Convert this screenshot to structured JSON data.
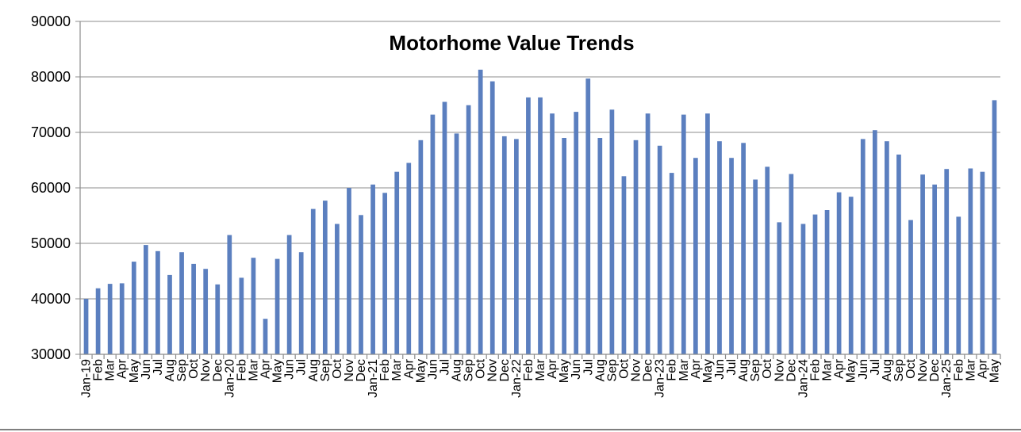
{
  "chart_data": {
    "type": "bar",
    "title": "Motorhome Value Trends",
    "xlabel": "",
    "ylabel": "",
    "ylim": [
      30000,
      90000
    ],
    "yticks": [
      30000,
      40000,
      50000,
      60000,
      70000,
      80000,
      90000
    ],
    "grid": true,
    "legend": "none",
    "bar_color": "#5b7fbf",
    "categories": [
      "Jan-19",
      "Feb",
      "Mar",
      "Apr",
      "May",
      "Jun",
      "Jul",
      "Aug",
      "Sep",
      "Oct",
      "Nov",
      "Dec",
      "Jan-20",
      "Feb",
      "Mar",
      "Apr",
      "May",
      "Jun",
      "Jul",
      "Aug",
      "Sep",
      "Oct",
      "Nov",
      "Dec",
      "Jan-21",
      "Feb",
      "Mar",
      "Apr",
      "May",
      "Jun",
      "Jul",
      "Aug",
      "Sep",
      "Oct",
      "Nov",
      "Dec",
      "Jan-22",
      "Feb",
      "Mar",
      "Apr",
      "May",
      "Jun",
      "Jul",
      "Aug",
      "Sep",
      "Oct",
      "Nov",
      "Dec",
      "Jan-23",
      "Feb",
      "Mar",
      "Apr",
      "May",
      "Jun",
      "Jul",
      "Aug",
      "Sep",
      "Oct",
      "Nov",
      "Dec",
      "Jan-24",
      "Feb",
      "Mar",
      "Apr",
      "May",
      "Jun",
      "Jul",
      "Aug",
      "Sep",
      "Oct",
      "Nov",
      "Dec",
      "Jan-25",
      "Feb",
      "Mar",
      "Apr",
      "May"
    ],
    "values": [
      40000,
      41900,
      42700,
      42800,
      46700,
      49700,
      48600,
      44300,
      48400,
      46300,
      45400,
      42600,
      51500,
      43800,
      47400,
      36400,
      47200,
      51500,
      48400,
      56200,
      57700,
      53500,
      60000,
      55100,
      60600,
      59100,
      62900,
      64500,
      68600,
      73200,
      75500,
      69800,
      74900,
      81300,
      79200,
      69300,
      68800,
      76300,
      76300,
      73400,
      69000,
      73700,
      79700,
      69000,
      74100,
      62100,
      68600,
      73400,
      67600,
      62700,
      73200,
      65400,
      73400,
      68400,
      65400,
      68100,
      61500,
      63800,
      53800,
      62500,
      53500,
      55200,
      56000,
      59200,
      58400,
      68800,
      70400,
      68400,
      66000,
      54200,
      62400,
      60600,
      63400,
      54800,
      63500,
      62900,
      75800
    ]
  }
}
